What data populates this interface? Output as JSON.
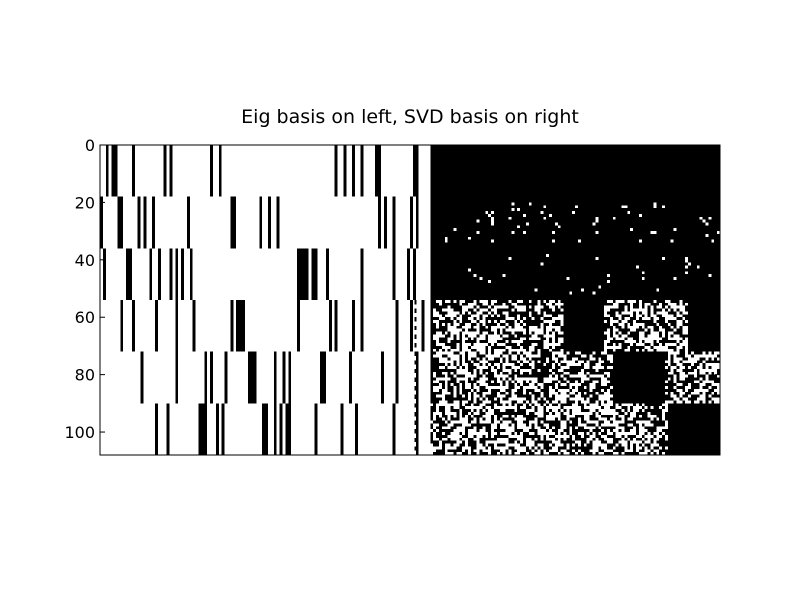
{
  "chart_data": {
    "type": "heatmap",
    "title": "Eig basis on left, SVD basis on right",
    "xlabel": "",
    "ylabel": "",
    "grid": false,
    "colormap": [
      "#ffffff",
      "#000000"
    ],
    "rows": 108,
    "cols": 214,
    "ylim": [
      108,
      0
    ],
    "yticks": [
      0,
      20,
      40,
      60,
      80,
      100
    ],
    "xticks": [],
    "panels": {
      "left": {
        "description_label": "Eig basis",
        "col_range": [
          0,
          114
        ]
      },
      "right": {
        "description_label": "SVD basis",
        "col_range": [
          114,
          214
        ]
      }
    },
    "row_blocks": [
      {
        "row_range": [
          0,
          18
        ],
        "left_black_cols": [
          [
            2,
            3
          ],
          [
            4,
            6
          ],
          [
            11,
            12
          ],
          [
            22,
            23
          ],
          [
            24,
            25
          ],
          [
            38,
            39
          ],
          [
            41,
            42
          ],
          [
            81,
            82
          ],
          [
            84,
            85
          ],
          [
            87,
            88
          ],
          [
            90,
            91
          ],
          [
            95,
            97
          ],
          [
            108,
            110
          ],
          [
            115,
            116
          ]
        ],
        "right_black_col_ranges": [
          [
            114,
            214
          ]
        ]
      },
      {
        "row_range": [
          18,
          36
        ],
        "left_black_cols": [
          [
            0,
            1
          ],
          [
            6,
            8
          ],
          [
            13,
            14
          ],
          [
            15,
            16
          ],
          [
            18,
            19
          ],
          [
            30,
            31
          ],
          [
            45,
            47
          ],
          [
            55,
            56
          ],
          [
            58,
            59
          ],
          [
            61,
            62
          ],
          [
            96,
            97
          ],
          [
            98,
            99
          ],
          [
            101,
            102
          ],
          [
            107,
            108
          ],
          [
            109,
            110
          ]
        ],
        "right_black_col_ranges": [
          [
            114,
            214
          ]
        ]
      },
      {
        "row_range": [
          36,
          54
        ],
        "left_black_cols": [
          [
            1,
            2
          ],
          [
            9,
            11
          ],
          [
            17,
            18
          ],
          [
            20,
            21
          ],
          [
            24,
            25
          ],
          [
            26,
            27
          ],
          [
            28,
            29
          ],
          [
            31,
            32
          ],
          [
            68,
            72
          ],
          [
            73,
            75
          ],
          [
            78,
            79
          ],
          [
            90,
            91
          ],
          [
            101,
            102
          ],
          [
            106,
            107
          ],
          [
            108,
            109
          ]
        ],
        "right_black_col_ranges": [
          [
            114,
            214
          ]
        ]
      },
      {
        "row_range": [
          54,
          72
        ],
        "left_black_cols": [
          [
            7,
            8
          ],
          [
            11,
            12
          ],
          [
            19,
            20
          ],
          [
            26,
            27
          ],
          [
            32,
            33
          ],
          [
            45,
            46
          ],
          [
            47,
            50
          ],
          [
            68,
            69
          ],
          [
            79,
            80
          ],
          [
            81,
            82
          ],
          [
            87,
            88
          ],
          [
            90,
            91
          ],
          [
            102,
            103
          ],
          [
            107,
            108
          ],
          [
            111,
            112
          ]
        ],
        "right_black_col_ranges": [
          [
            114,
            115
          ],
          [
            147,
            148
          ],
          [
            160,
            174
          ],
          [
            203,
            214
          ]
        ]
      },
      {
        "row_range": [
          72,
          90
        ],
        "left_black_cols": [
          [
            14,
            15
          ],
          [
            26,
            27
          ],
          [
            36,
            37
          ],
          [
            38,
            39
          ],
          [
            43,
            44
          ],
          [
            51,
            54
          ],
          [
            60,
            61
          ],
          [
            63,
            64
          ],
          [
            65,
            66
          ],
          [
            76,
            78
          ],
          [
            86,
            87
          ],
          [
            97,
            98
          ],
          [
            102,
            103
          ],
          [
            109,
            110
          ]
        ],
        "right_black_col_ranges": [
          [
            114,
            115
          ],
          [
            177,
            195
          ]
        ]
      },
      {
        "row_range": [
          90,
          108
        ],
        "left_black_cols": [
          [
            19,
            20
          ],
          [
            23,
            24
          ],
          [
            34,
            37
          ],
          [
            40,
            41
          ],
          [
            42,
            43
          ],
          [
            56,
            58
          ],
          [
            60,
            61
          ],
          [
            62,
            63
          ],
          [
            64,
            66
          ],
          [
            74,
            75
          ],
          [
            83,
            84
          ],
          [
            88,
            89
          ],
          [
            101,
            102
          ],
          [
            109,
            110
          ]
        ],
        "right_black_col_ranges": [
          [
            114,
            114
          ],
          [
            196,
            214
          ]
        ]
      }
    ]
  }
}
